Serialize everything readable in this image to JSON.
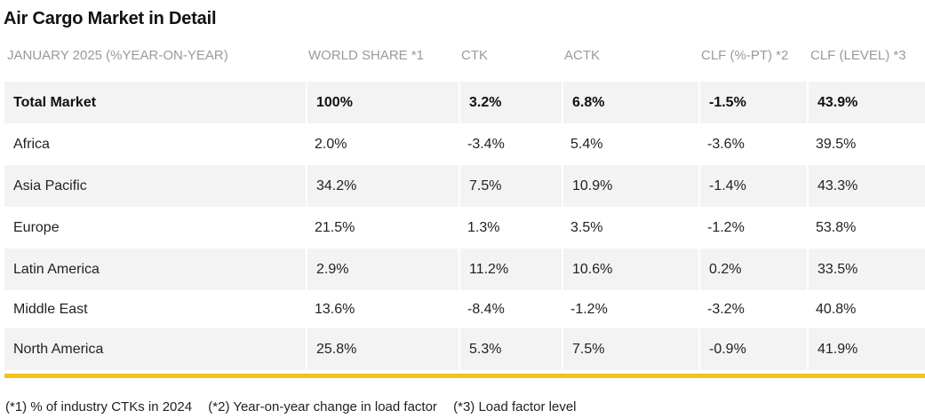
{
  "title": "Air Cargo Market in Detail",
  "columns": [
    "JANUARY 2025 (%YEAR-ON-YEAR)",
    "WORLD SHARE *1",
    "CTK",
    "ACTK",
    "CLF (%-PT) *2",
    "CLF (LEVEL) *3"
  ],
  "rows": [
    [
      "Total Market",
      "100%",
      "3.2%",
      "6.8%",
      "-1.5%",
      "43.9%"
    ],
    [
      "Africa",
      "2.0%",
      "-3.4%",
      "5.4%",
      "-3.6%",
      "39.5%"
    ],
    [
      "Asia Pacific",
      "34.2%",
      "7.5%",
      "10.9%",
      "-1.4%",
      "43.3%"
    ],
    [
      "Europe",
      "21.5%",
      "1.3%",
      "3.5%",
      "-1.2%",
      "53.8%"
    ],
    [
      "Latin America",
      "2.9%",
      "11.2%",
      "10.6%",
      "0.2%",
      "33.5%"
    ],
    [
      "Middle East",
      "13.6%",
      "-8.4%",
      "-1.2%",
      "-3.2%",
      "40.8%"
    ],
    [
      "North America",
      "25.8%",
      "5.3%",
      "7.5%",
      "-0.9%",
      "41.9%"
    ]
  ],
  "footnotes": [
    "(*1) % of industry CTKs in 2024",
    "(*2) Year-on-year change in load factor",
    "(*3) Load factor level"
  ],
  "colors": {
    "accent": "#f2c318",
    "row_shade": "#f3f3f3",
    "header_text": "#9a9a9a"
  }
}
